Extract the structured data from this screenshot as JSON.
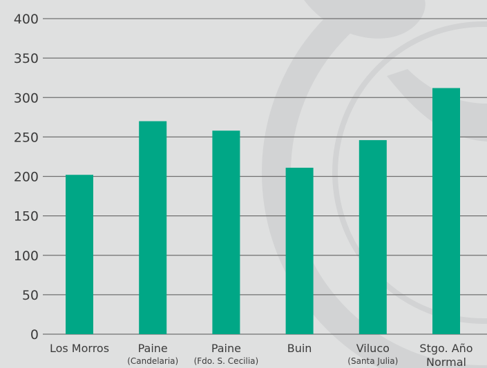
{
  "chart_data": {
    "type": "bar",
    "categories": [
      {
        "label": "Los Morros",
        "sub": ""
      },
      {
        "label": "Paine",
        "sub": "(Candelaria)"
      },
      {
        "label": "Paine",
        "sub": "(Fdo. S. Cecilia)"
      },
      {
        "label": "Buin",
        "sub": ""
      },
      {
        "label": "Viluco",
        "sub": "(Santa Julia)"
      },
      {
        "label": "Stgo. Año",
        "line2": "Normal"
      }
    ],
    "values": [
      202,
      270,
      258,
      211,
      246,
      312
    ],
    "ylim": [
      0,
      400
    ],
    "yticks": [
      0,
      50,
      100,
      150,
      200,
      250,
      300,
      350,
      400
    ],
    "grid": true,
    "colors": {
      "bar": "#00a786",
      "grid": "#6f6f6f",
      "background": "#dfe0e0",
      "watermark": "#d2d3d4"
    }
  }
}
